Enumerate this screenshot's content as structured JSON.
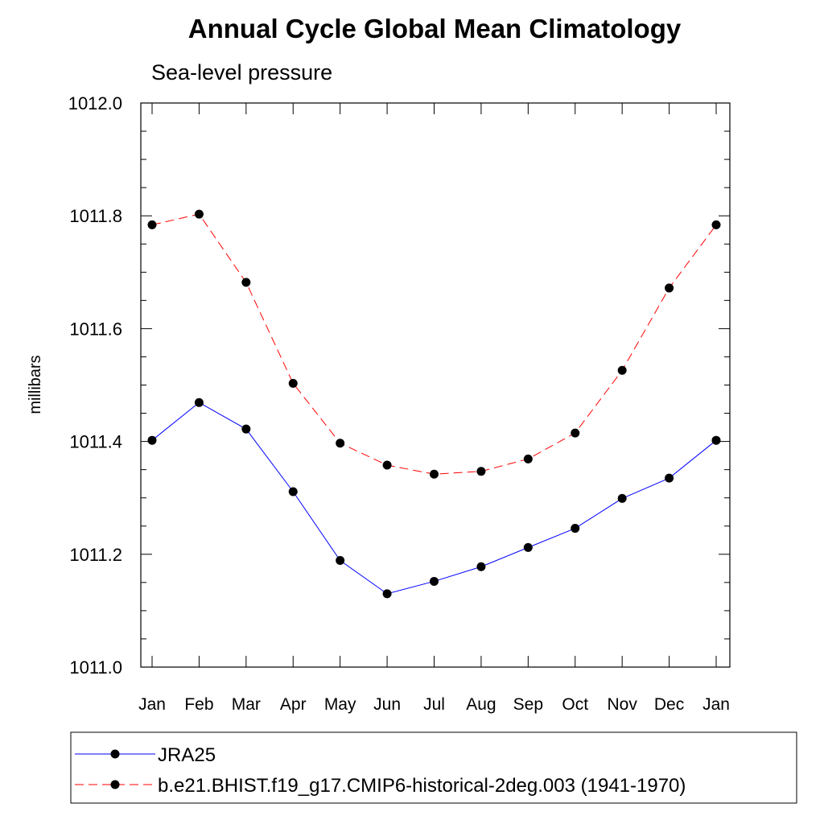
{
  "chart_data": {
    "type": "line",
    "title": "Annual Cycle Global Mean Climatology",
    "subtitle": "Sea-level pressure",
    "xlabel": "",
    "ylabel": "millibars",
    "categories": [
      "Jan",
      "Feb",
      "Mar",
      "Apr",
      "May",
      "Jun",
      "Jul",
      "Aug",
      "Sep",
      "Oct",
      "Nov",
      "Dec",
      "Jan"
    ],
    "ylim": [
      1011.0,
      1012.0
    ],
    "yticks": [
      "1011.0",
      "1011.2",
      "1011.4",
      "1011.6",
      "1011.8",
      "1012.0"
    ],
    "grid": false,
    "legend_position": "bottom",
    "series": [
      {
        "name": "JRA25",
        "color": "#0000ff",
        "dash": "solid",
        "marker": "filled-circle",
        "values": [
          1011.402,
          1011.469,
          1011.422,
          1011.311,
          1011.189,
          1011.13,
          1011.152,
          1011.178,
          1011.212,
          1011.246,
          1011.299,
          1011.335,
          1011.402
        ]
      },
      {
        "name": "b.e21.BHIST.f19_g17.CMIP6-historical-2deg.003 (1941-1970)",
        "color": "#ff0000",
        "dash": "dashed",
        "marker": "filled-circle",
        "values": [
          1011.784,
          1011.803,
          1011.682,
          1011.503,
          1011.397,
          1011.358,
          1011.342,
          1011.347,
          1011.369,
          1011.415,
          1011.526,
          1011.672,
          1011.784
        ]
      }
    ]
  }
}
